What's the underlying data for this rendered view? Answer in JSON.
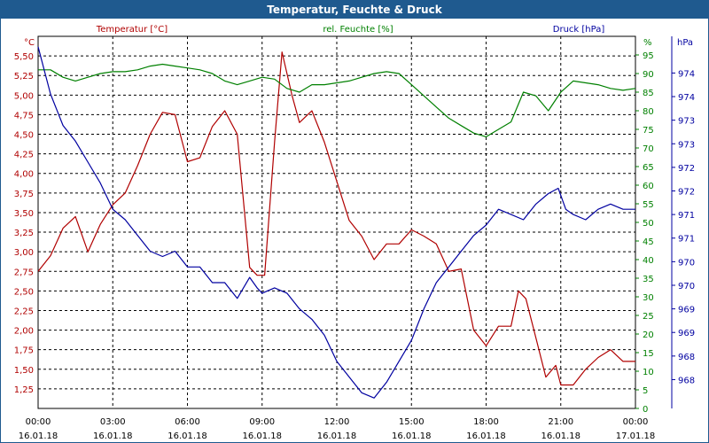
{
  "window": {
    "title": "Temperatur, Feuchte & Druck"
  },
  "colors": {
    "temperature": "#b00000",
    "humidity": "#008000",
    "pressure": "#0000a0",
    "titlebar": "#1f5a8f",
    "grid": "#000000"
  },
  "chart_data": {
    "type": "line",
    "title": "Temperatur, Feuchte & Druck",
    "grid": true,
    "x_ticks": [
      {
        "time": "00:00",
        "date": "16.01.18"
      },
      {
        "time": "03:00",
        "date": "16.01.18"
      },
      {
        "time": "06:00",
        "date": "16.01.18"
      },
      {
        "time": "09:00",
        "date": "16.01.18"
      },
      {
        "time": "12:00",
        "date": "16.01.18"
      },
      {
        "time": "15:00",
        "date": "16.01.18"
      },
      {
        "time": "18:00",
        "date": "16.01.18"
      },
      {
        "time": "21:00",
        "date": "16.01.18"
      },
      {
        "time": "00:00",
        "date": "17.01.18"
      }
    ],
    "axes": {
      "temperature": {
        "unit": "°C",
        "label": "Temperatur [°C]",
        "min": 1.0,
        "max": 5.75,
        "ticks": [
          "5,50",
          "5,25",
          "5,00",
          "4,75",
          "4,50",
          "4,25",
          "4,00",
          "3,75",
          "3,50",
          "3,25",
          "3,00",
          "2,75",
          "2,50",
          "2,25",
          "2,00",
          "1,75",
          "1,50",
          "1,25"
        ]
      },
      "humidity": {
        "unit": "%",
        "label": "rel. Feuchte [%]",
        "min": 0,
        "max": 100,
        "ticks": [
          "95",
          "90",
          "85",
          "80",
          "75",
          "70",
          "65",
          "60",
          "55",
          "50",
          "45",
          "40",
          "35",
          "30",
          "25",
          "20",
          "15",
          "10",
          "5",
          "0"
        ]
      },
      "pressure": {
        "unit": "hPa",
        "label": "Druck [hPa]",
        "min": 967.6,
        "max": 974.7,
        "ticks": [
          "974",
          "974",
          "973",
          "973",
          "972",
          "972",
          "971",
          "971",
          "970",
          "970",
          "969",
          "969",
          "968",
          "968"
        ]
      }
    },
    "series": [
      {
        "name": "Temperatur [°C]",
        "axis": "temperature",
        "x": [
          0,
          0.5,
          1,
          1.5,
          2,
          2.5,
          3,
          3.5,
          4,
          4.5,
          5,
          5.5,
          6,
          6.5,
          7,
          7.5,
          8,
          8.5,
          8.8,
          9.1,
          9.5,
          9.8,
          10.2,
          10.5,
          11,
          11.5,
          12,
          12.5,
          13,
          13.5,
          14,
          14.5,
          15,
          15.5,
          16,
          16.5,
          17,
          17.5,
          18,
          18.5,
          19,
          19.3,
          19.6,
          20,
          20.4,
          20.8,
          21,
          21.5,
          22,
          22.5,
          23,
          23.5,
          24
        ],
        "values": [
          2.75,
          2.95,
          3.3,
          3.45,
          3.0,
          3.35,
          3.6,
          3.75,
          4.1,
          4.5,
          4.78,
          4.75,
          4.15,
          4.2,
          4.6,
          4.8,
          4.5,
          2.8,
          2.7,
          2.7,
          4.4,
          5.55,
          5.0,
          4.65,
          4.8,
          4.4,
          3.9,
          3.4,
          3.2,
          2.9,
          3.1,
          3.1,
          3.28,
          3.2,
          3.1,
          2.75,
          2.78,
          2.0,
          1.8,
          2.05,
          2.05,
          2.5,
          2.4,
          1.9,
          1.4,
          1.55,
          1.3,
          1.3,
          1.5,
          1.65,
          1.75,
          1.6,
          1.6
        ]
      },
      {
        "name": "rel. Feuchte [%]",
        "axis": "humidity",
        "x": [
          0,
          0.5,
          1,
          1.5,
          2,
          2.5,
          3,
          3.5,
          4,
          4.5,
          5,
          5.5,
          6,
          6.5,
          7,
          7.5,
          8,
          8.5,
          9,
          9.5,
          10,
          10.5,
          11,
          11.5,
          12,
          12.5,
          13,
          13.5,
          14,
          14.5,
          15,
          15.5,
          16,
          16.5,
          17,
          17.5,
          18,
          18.5,
          19,
          19.5,
          20,
          20.5,
          21,
          21.5,
          22,
          22.5,
          23,
          23.5,
          24
        ],
        "values": [
          91,
          91,
          89,
          88,
          89,
          90,
          90.5,
          90.5,
          91,
          92,
          92.5,
          92,
          91.5,
          91,
          90,
          88,
          87,
          88,
          89,
          88.5,
          86,
          85,
          87,
          87,
          87.5,
          88,
          89,
          90,
          90.5,
          90,
          87,
          84,
          81,
          78,
          76,
          74,
          73,
          75,
          77,
          85,
          84,
          80,
          85,
          88,
          87.5,
          87,
          86,
          85.5,
          86
        ]
      },
      {
        "name": "Druck [hPa]",
        "axis": "pressure",
        "x": [
          0,
          0.5,
          1,
          1.5,
          2,
          2.5,
          3,
          3.5,
          4,
          4.5,
          5,
          5.5,
          6,
          6.5,
          7,
          7.5,
          8,
          8.5,
          8.8,
          9,
          9.5,
          10,
          10.5,
          11,
          11.5,
          12,
          12.5,
          13,
          13.5,
          14,
          14.5,
          15,
          15.5,
          16,
          16.5,
          17,
          17.5,
          18,
          18.5,
          19,
          19.5,
          20,
          20.5,
          20.9,
          21.2,
          21.5,
          22,
          22.5,
          23,
          23.5,
          24
        ],
        "values": [
          974.5,
          973.6,
          973.0,
          972.7,
          972.3,
          971.9,
          971.4,
          971.2,
          970.9,
          970.6,
          970.5,
          970.6,
          970.3,
          970.3,
          970.0,
          970.0,
          969.7,
          970.1,
          969.9,
          969.8,
          969.9,
          969.8,
          969.5,
          969.3,
          969.0,
          968.5,
          968.2,
          967.9,
          967.8,
          968.1,
          968.5,
          968.9,
          969.5,
          970.0,
          970.3,
          970.6,
          970.9,
          971.1,
          971.4,
          971.3,
          971.2,
          971.5,
          971.7,
          971.8,
          971.4,
          971.3,
          971.2,
          971.4,
          971.5,
          971.4,
          971.4
        ]
      }
    ]
  }
}
